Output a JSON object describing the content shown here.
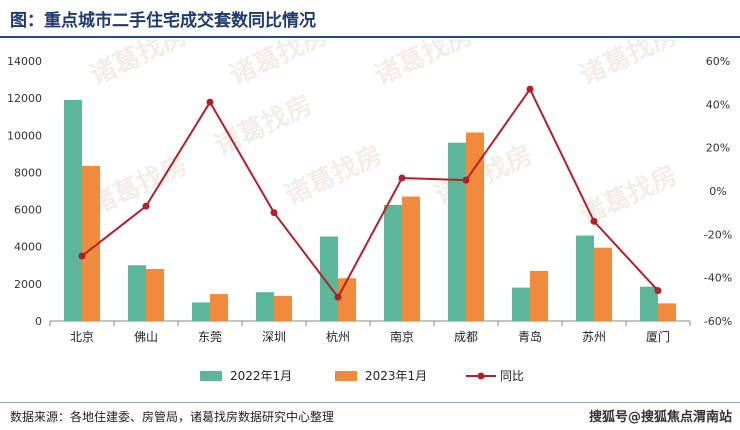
{
  "page": {
    "title": "图：重点城市二手住宅成交套数同比情况",
    "source": "数据来源：各地住建委、房管局，诸葛找房数据研究中心整理",
    "credit": "搜狐号@搜狐焦点渭南站",
    "watermark": "诸葛找房"
  },
  "chart_data": {
    "type": "bar",
    "categories": [
      "北京",
      "佛山",
      "东莞",
      "深圳",
      "杭州",
      "南京",
      "成都",
      "青岛",
      "苏州",
      "厦门"
    ],
    "series": [
      {
        "name": "2022年1月",
        "type": "bar",
        "axis": "left",
        "color": "#5cb69a",
        "values": [
          11900,
          3000,
          1000,
          1550,
          4550,
          6250,
          9600,
          1800,
          4600,
          1850
        ]
      },
      {
        "name": "2023年1月",
        "type": "bar",
        "axis": "left",
        "color": "#f08a3c",
        "values": [
          8350,
          2800,
          1450,
          1350,
          2300,
          6700,
          10150,
          2700,
          3950,
          950
        ]
      },
      {
        "name": "同比",
        "type": "line",
        "axis": "right",
        "color": "#b3202a",
        "unit": "%",
        "values": [
          -30,
          -7,
          41,
          -10,
          -49,
          6,
          5,
          47,
          -14,
          -46
        ]
      }
    ],
    "y_left": {
      "min": 0,
      "max": 14000,
      "step": 2000,
      "ticks": [
        "0",
        "2000",
        "4000",
        "6000",
        "8000",
        "10000",
        "12000",
        "14000"
      ]
    },
    "y_right": {
      "min": -60,
      "max": 60,
      "step": 20,
      "ticks": [
        "-60%",
        "-40%",
        "-20%",
        "0%",
        "20%",
        "40%",
        "60%"
      ]
    },
    "legend_position": "bottom",
    "grid": false
  }
}
